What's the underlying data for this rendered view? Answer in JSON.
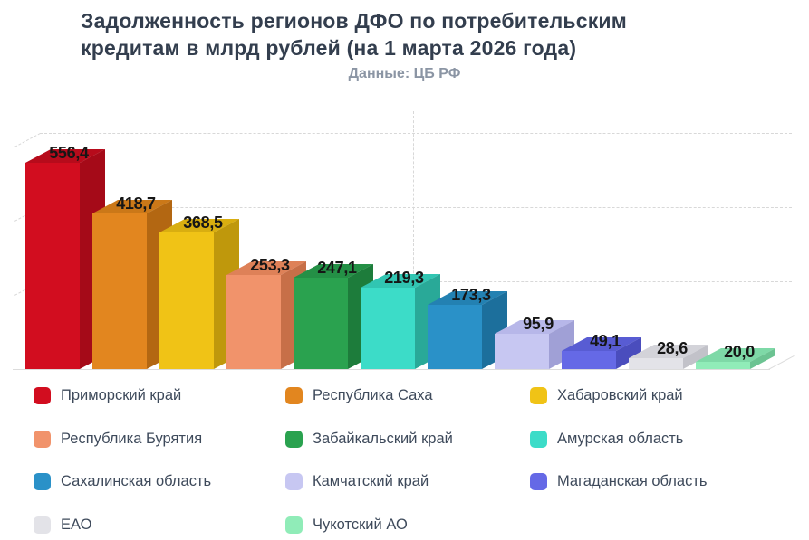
{
  "header": {
    "title_lines": [
      "Задолженность регионов ДФО по потребительским",
      "кредитам в млрд рублей (на 1 марта 2026 года)"
    ],
    "subtitle": "Данные: ЦБ РФ"
  },
  "chart_data": {
    "type": "bar",
    "style": "3d-column",
    "title": "Задолженность регионов ДФО по потребительским кредитам в млрд рублей (на 1 марта 2026 года)",
    "subtitle": "Данные: ЦБ РФ",
    "unit": "млрд рублей",
    "categories": [
      "Приморский край",
      "Республика Саха",
      "Хабаровский край",
      "Республика Бурятия",
      "Забайкальский край",
      "Амурская область",
      "Сахалинская область",
      "Камчатский край",
      "Магаданская область",
      "ЕАО",
      "Чукотский АО"
    ],
    "values": [
      556.4,
      418.7,
      368.5,
      253.3,
      247.1,
      219.3,
      173.3,
      95.9,
      49.1,
      28.6,
      20.0
    ],
    "value_labels": [
      "556,4",
      "418,7",
      "368,5",
      "253,3",
      "247,1",
      "219,3",
      "173,3",
      "95,9",
      "49,1",
      "28,6",
      "20,0"
    ],
    "colors": [
      {
        "front": "#d20d1f",
        "top": "#b70b1b",
        "side": "#a50a18"
      },
      {
        "front": "#e2861f",
        "top": "#cb7818",
        "side": "#b36712"
      },
      {
        "front": "#f0c316",
        "top": "#d9ae10",
        "side": "#bf980c"
      },
      {
        "front": "#f1936b",
        "top": "#de8158",
        "side": "#c76f48"
      },
      {
        "front": "#2aa24f",
        "top": "#249046",
        "side": "#1d7c3b"
      },
      {
        "front": "#3cdcc8",
        "top": "#31c5b2",
        "side": "#29a998"
      },
      {
        "front": "#2a91c8",
        "top": "#2381b2",
        "side": "#1c6f9c"
      },
      {
        "front": "#c7c7f2",
        "top": "#b7b7e9",
        "side": "#a0a0d6"
      },
      {
        "front": "#6569e6",
        "top": "#585cd3",
        "side": "#4a4dbd"
      },
      {
        "front": "#e3e3e8",
        "top": "#d3d3d9",
        "side": "#c2c2c9"
      },
      {
        "front": "#90ecb8",
        "top": "#7ed9a7",
        "side": "#6cc392"
      }
    ],
    "ylim": [
      0,
      620
    ],
    "gridline_values": [
      200,
      400,
      600
    ],
    "grid": "dashed",
    "grid_color": "#d8d8d8",
    "axis_color": "#dcdcdc",
    "label_color": "#161616",
    "legend_position": "bottom",
    "legend_columns": 3
  }
}
